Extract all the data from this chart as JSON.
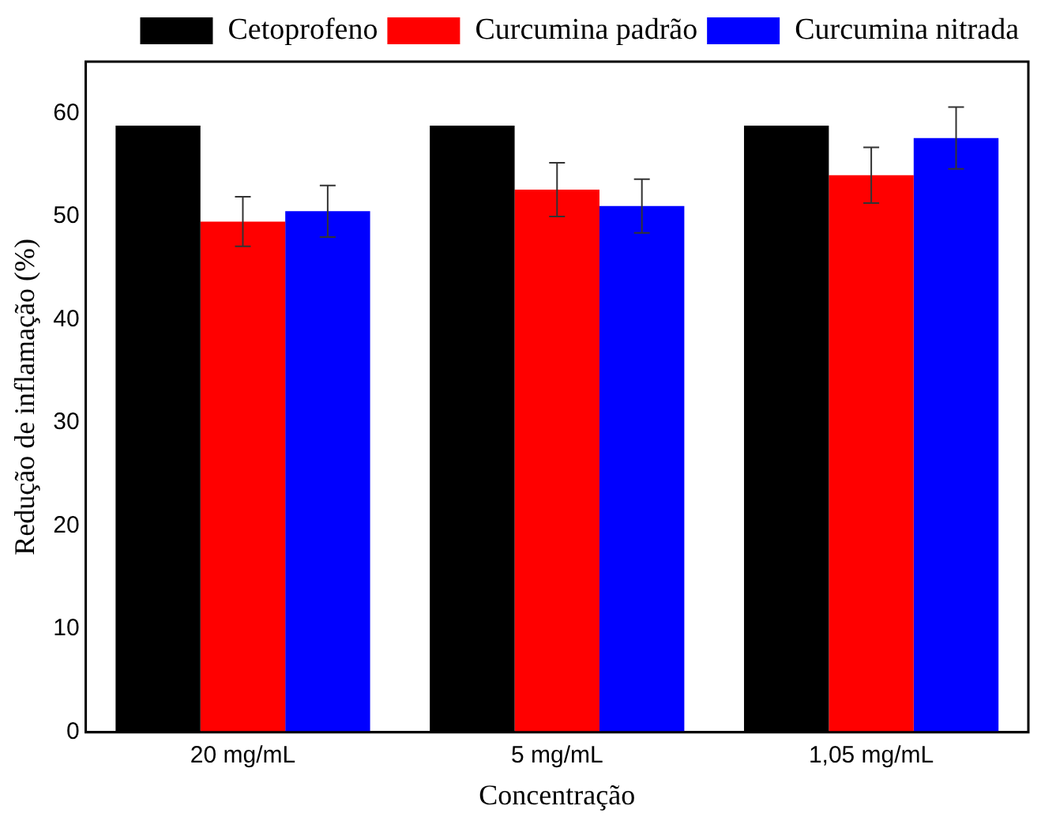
{
  "chart_data": {
    "type": "bar",
    "xlabel": "Concentração",
    "ylabel": "Redução de inflamação (%)",
    "categories": [
      "20 mg/mL",
      "5 mg/mL",
      "1,05 mg/mL"
    ],
    "series": [
      {
        "name": "Cetoprofeno",
        "color": "#000000",
        "values": [
          58.8,
          58.8,
          58.8
        ]
      },
      {
        "name": "Curcumina padrão",
        "color": "#ff0000",
        "values": [
          49.5,
          52.6,
          54.0
        ],
        "errors": [
          2.4,
          2.6,
          2.7
        ]
      },
      {
        "name": "Curcumina nitrada",
        "color": "#0000ff",
        "values": [
          50.5,
          51.0,
          57.6
        ],
        "errors": [
          2.5,
          2.6,
          3.0
        ]
      }
    ],
    "ylim": [
      0,
      65
    ],
    "yticks": [
      0,
      10,
      20,
      30,
      40,
      50,
      60
    ],
    "grid": false,
    "legend": "top"
  }
}
